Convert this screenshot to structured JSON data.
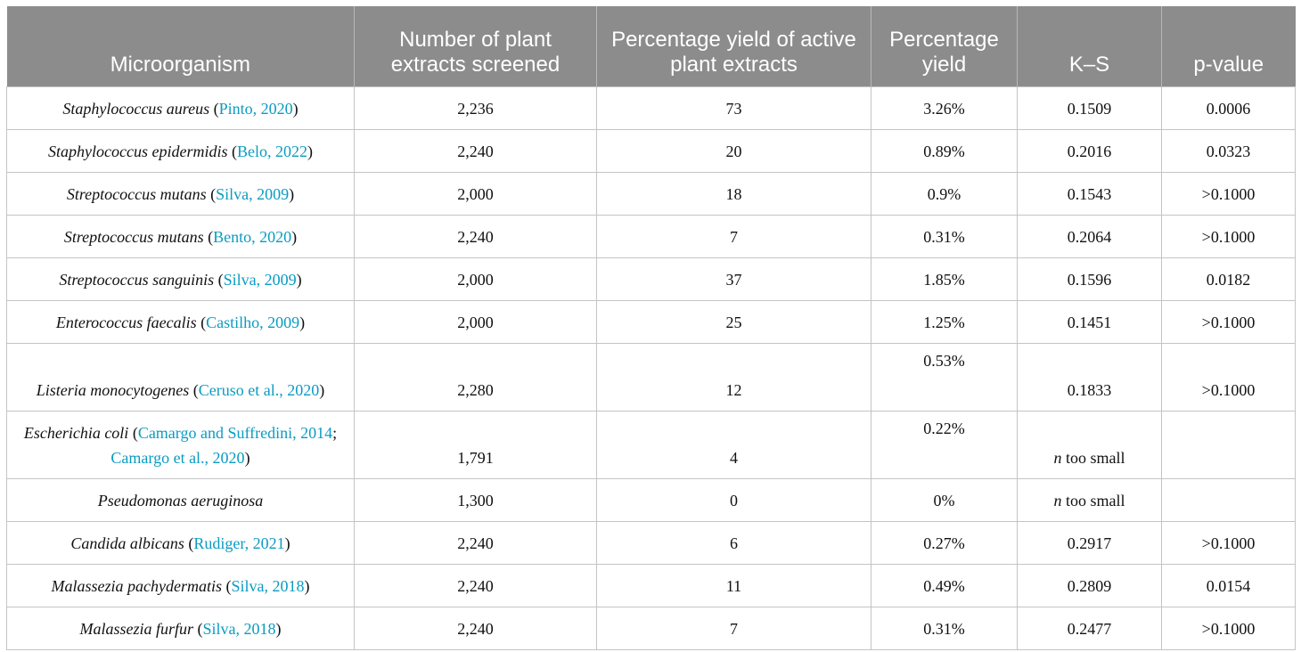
{
  "headers": [
    "Microorganism",
    "Number of plant extracts screened",
    "Percentage yield of active plant extracts",
    "Percentage yield",
    "K–S",
    "p-value"
  ],
  "rows": [
    {
      "organism": "Staphylococcus aureus",
      "pre": " (",
      "ref1": "Pinto, 2020",
      "mid": "",
      "ref2": "",
      "post": ")",
      "screened": "2,236",
      "active": "73",
      "yield": "3.26%",
      "ks": "0.1509",
      "p": "0.0006"
    },
    {
      "organism": "Staphylococcus epidermidis",
      "pre": " (",
      "ref1": "Belo, 2022",
      "mid": "",
      "ref2": "",
      "post": ")",
      "screened": "2,240",
      "active": "20",
      "yield": "0.89%",
      "ks": "0.2016",
      "p": "0.0323"
    },
    {
      "organism": "Streptococcus mutans",
      "pre": " (",
      "ref1": "Silva, 2009",
      "mid": "",
      "ref2": "",
      "post": ")",
      "screened": "2,000",
      "active": "18",
      "yield": "0.9%",
      "ks": "0.1543",
      "p": ">0.1000"
    },
    {
      "organism": "Streptococcus mutans",
      "pre": " (",
      "ref1": "Bento, 2020",
      "mid": "",
      "ref2": "",
      "post": ")",
      "screened": "2,240",
      "active": "7",
      "yield": "0.31%",
      "ks": "0.2064",
      "p": ">0.1000"
    },
    {
      "organism": "Streptococcus sanguinis",
      "pre": " (",
      "ref1": "Silva, 2009",
      "mid": "",
      "ref2": "",
      "post": ")",
      "screened": "2,000",
      "active": "37",
      "yield": "1.85%",
      "ks": "0.1596",
      "p": "0.0182"
    },
    {
      "organism": "Enterococcus faecalis",
      "pre": " (",
      "ref1": "Castilho, 2009",
      "mid": "",
      "ref2": "",
      "post": ")",
      "screened": "2,000",
      "active": "25",
      "yield": "1.25%",
      "ks": "0.1451",
      "p": ">0.1000"
    },
    {
      "organism": "Listeria monocytogenes",
      "pre": " (",
      "ref1": "Ceruso et al., 2020",
      "mid": "",
      "ref2": "",
      "post": ")",
      "screened": "2,280",
      "active": "12",
      "yield": "0.53%",
      "ks": "0.1833",
      "p": ">0.1000"
    },
    {
      "organism": "Escherichia coli",
      "pre": " (",
      "ref1": "Camargo and Suffredini, 2014",
      "mid": "; ",
      "ref2": "Camargo et al., 2020",
      "post": ")",
      "screened": "1,791",
      "active": "4",
      "yield": "0.22%",
      "ks_n": "n",
      "ks_rest": " too small",
      "p": ""
    },
    {
      "organism": "Pseudomonas aeruginosa",
      "pre": "",
      "ref1": "",
      "mid": "",
      "ref2": "",
      "post": "",
      "screened": "1,300",
      "active": "0",
      "yield": "0%",
      "ks_n": "n",
      "ks_rest": " too small",
      "p": ""
    },
    {
      "organism": "Candida albicans",
      "pre": " (",
      "ref1": "Rudiger, 2021",
      "mid": "",
      "ref2": "",
      "post": ")",
      "screened": "2,240",
      "active": "6",
      "yield": "0.27%",
      "ks": "0.2917",
      "p": ">0.1000"
    },
    {
      "organism": "Malassezia pachydermatis",
      "pre": " (",
      "ref1": "Silva, 2018",
      "mid": "",
      "ref2": "",
      "post": ")",
      "screened": "2,240",
      "active": "11",
      "yield": "0.49%",
      "ks": "0.2809",
      "p": "0.0154"
    },
    {
      "organism": "Malassezia furfur",
      "pre": " (",
      "ref1": "Silva, 2018",
      "mid": "",
      "ref2": "",
      "post": ")",
      "screened": "2,240",
      "active": "7",
      "yield": "0.31%",
      "ks": "0.2477",
      "p": ">0.1000"
    }
  ]
}
